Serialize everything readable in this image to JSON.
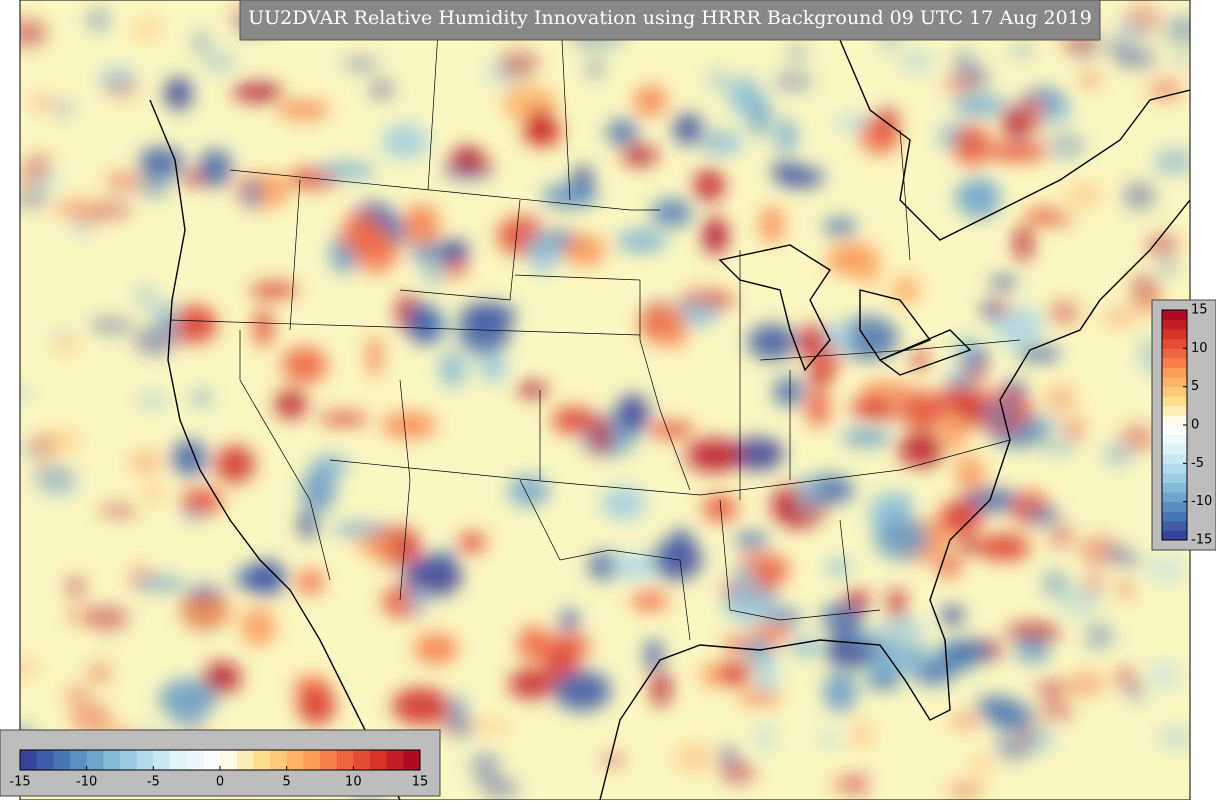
{
  "title": "UU2DVAR Relative Humidity Innovation using HRRR Background 09 UTC 17 Aug 2019",
  "colorbar_bottom": {
    "range": [
      -15,
      15
    ],
    "ticks": [
      -15,
      -10,
      -5,
      0,
      5,
      10,
      15
    ]
  },
  "colorbar_right": {
    "range": [
      -15,
      15
    ],
    "ticks": [
      -15,
      -10,
      -5,
      0,
      5,
      10,
      15
    ]
  }
}
